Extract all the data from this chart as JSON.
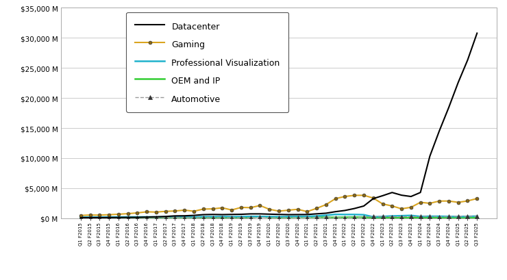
{
  "quarters": [
    "Q1 F2015",
    "Q2 F2015",
    "Q3 F2015",
    "Q4 F2015",
    "Q1 F2016",
    "Q2 F2016",
    "Q3 F2016",
    "Q4 F2016",
    "Q1 F2017",
    "Q2 F2017",
    "Q3 F2017",
    "Q4 F2017",
    "Q1 F2018",
    "Q2 F2018",
    "Q3 F2018",
    "Q4 F2018",
    "Q1 F2019",
    "Q2 F2019",
    "Q3 F2019",
    "Q4 F2019",
    "Q1 F2020",
    "Q2 F2020",
    "Q3 F2020",
    "Q4 F2020",
    "Q1 F2021",
    "Q2 F2021",
    "Q3 F2021",
    "Q4 F2021",
    "Q1 F2022",
    "Q2 F2022",
    "Q3 F2022",
    "Q4 F2022",
    "Q1 F2023",
    "Q2 F2023",
    "Q3 F2023",
    "Q4 F2023",
    "Q1 F2024",
    "Q2 F2024",
    "Q3 F2024",
    "Q4 F2024",
    "Q1 F2025",
    "Q2 F2025",
    "Q3 F2025"
  ],
  "datacenter": [
    99,
    104,
    106,
    116,
    126,
    140,
    151,
    194,
    240,
    296,
    395,
    409,
    476,
    604,
    633,
    606,
    634,
    655,
    726,
    727,
    679,
    638,
    603,
    614,
    620,
    736,
    838,
    1095,
    1295,
    1618,
    2034,
    3263,
    3750,
    4280,
    3833,
    3616,
    4284,
    10323,
    14514,
    18404,
    22563,
    26300,
    30770
  ],
  "gaming": [
    468,
    540,
    522,
    591,
    671,
    762,
    894,
    1069,
    1028,
    1148,
    1210,
    1349,
    1166,
    1527,
    1561,
    1739,
    1375,
    1800,
    1764,
    2117,
    1491,
    1186,
    1339,
    1487,
    1107,
    1645,
    2272,
    3263,
    3621,
    3806,
    3814,
    3362,
    2381,
    2042,
    1574,
    1821,
    2647,
    2489,
    2857,
    2865,
    2647,
    2880,
    3279
  ],
  "professional_viz": [
    190,
    193,
    182,
    196,
    200,
    213,
    212,
    220,
    205,
    221,
    228,
    234,
    192,
    261,
    262,
    282,
    254,
    271,
    300,
    293,
    277,
    256,
    282,
    304,
    307,
    377,
    496,
    643,
    622,
    622,
    577,
    226,
    295,
    379,
    416,
    463,
    295,
    328,
    327,
    298,
    284,
    309,
    349
  ],
  "oem_ip": [
    151,
    166,
    162,
    168,
    142,
    155,
    131,
    174,
    128,
    143,
    151,
    149,
    138,
    131,
    133,
    116,
    131,
    102,
    117,
    293,
    155,
    131,
    144,
    188,
    169,
    172,
    152,
    135,
    158,
    175,
    166,
    93,
    77,
    66,
    77,
    91,
    85,
    66,
    64,
    62,
    71,
    88,
    116
  ],
  "automotive": [
    55,
    68,
    57,
    67,
    84,
    100,
    100,
    123,
    120,
    142,
    142,
    145,
    119,
    145,
    138,
    145,
    116,
    120,
    106,
    163,
    119,
    111,
    125,
    145,
    132,
    154,
    152,
    130,
    138,
    154,
    175,
    294,
    295,
    253,
    261,
    281,
    296,
    346,
    261,
    281,
    329,
    346,
    346
  ],
  "datacenter_color": "#000000",
  "gaming_color": "#DAA520",
  "professional_viz_color": "#20B2CC",
  "oem_ip_color": "#32CD32",
  "automotive_color": "#999999",
  "ylim": [
    0,
    35000
  ],
  "yticks": [
    0,
    5000,
    10000,
    15000,
    20000,
    25000,
    30000,
    35000
  ],
  "ytick_labels": [
    "$0 M",
    "$5,000 M",
    "$10,000 M",
    "$15,000 M",
    "$20,000 M",
    "$25,000 M",
    "$30,000 M",
    "$35,000 M"
  ],
  "background_color": "#FFFFFF",
  "grid_color": "#CCCCCC",
  "legend_labels": [
    "Datacenter",
    "Gaming",
    "Professional Visualization",
    "OEM and IP",
    "Automotive"
  ]
}
